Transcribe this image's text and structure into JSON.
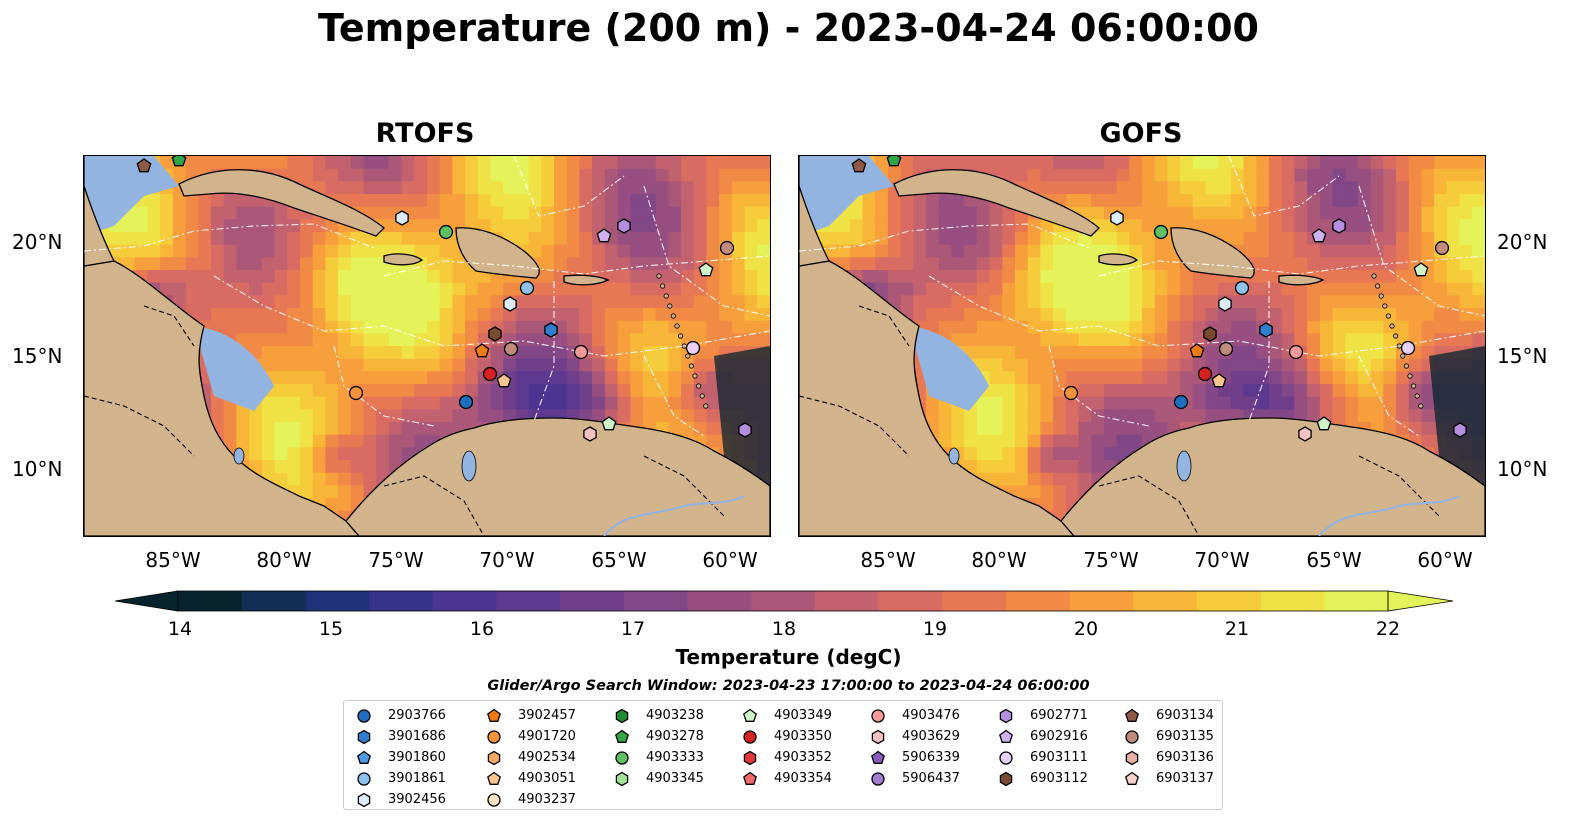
{
  "title": "Temperature (200 m) - 2023-04-24 06:00:00",
  "panels": [
    {
      "title": "RTOFS"
    },
    {
      "title": "GOFS"
    }
  ],
  "axes": {
    "lat_ticks": [
      "20°N",
      "15°N",
      "10°N"
    ],
    "lon_ticks": [
      "85°W",
      "80°W",
      "75°W",
      "70°W",
      "65°W",
      "60°W"
    ]
  },
  "colorbar": {
    "label": "Temperature (degC)",
    "ticks": [
      "14",
      "15",
      "16",
      "17",
      "18",
      "19",
      "20",
      "21",
      "22"
    ],
    "range": [
      14,
      22
    ],
    "colors": [
      "#06232e",
      "#132d55",
      "#1f3178",
      "#35338a",
      "#4a3590",
      "#5d3a90",
      "#6f3f8c",
      "#824786",
      "#964f80",
      "#ab5878",
      "#c2626f",
      "#d86c62",
      "#e87853",
      "#f18a45",
      "#f69f3c",
      "#f8b638",
      "#f5cc3b",
      "#eee247",
      "#e5f35a"
    ]
  },
  "search_window": "Glider/Argo Search Window: 2023-04-23 17:00:00 to 2023-04-24 06:00:00",
  "legend": {
    "columns": [
      [
        {
          "id": "2903766",
          "marker": "circle",
          "color": "#1f6fc0"
        },
        {
          "id": "3901686",
          "marker": "hexagon",
          "color": "#2f7fce"
        },
        {
          "id": "3901860",
          "marker": "pentagon",
          "color": "#4f9ae0"
        },
        {
          "id": "3901861",
          "marker": "circle",
          "color": "#8ec1ee"
        },
        {
          "id": "3902456",
          "marker": "hexagon",
          "color": "#dcecfb"
        }
      ],
      [
        {
          "id": "3902457",
          "marker": "pentagon",
          "color": "#f07a12"
        },
        {
          "id": "4901720",
          "marker": "circle",
          "color": "#f7923a"
        },
        {
          "id": "4902534",
          "marker": "hexagon",
          "color": "#f8a862"
        },
        {
          "id": "4903051",
          "marker": "pentagon",
          "color": "#fbc48e"
        },
        {
          "id": "4903237",
          "marker": "circle",
          "color": "#fde2c3"
        }
      ],
      [
        {
          "id": "4903238",
          "marker": "hexagon",
          "color": "#1e8c32"
        },
        {
          "id": "4903278",
          "marker": "pentagon",
          "color": "#31a444"
        },
        {
          "id": "4903333",
          "marker": "circle",
          "color": "#5cc160"
        },
        {
          "id": "4903345",
          "marker": "hexagon",
          "color": "#9fe395"
        }
      ],
      [
        {
          "id": "4903349",
          "marker": "pentagon",
          "color": "#cdf5c5"
        },
        {
          "id": "4903350",
          "marker": "circle",
          "color": "#d62222"
        },
        {
          "id": "4903352",
          "marker": "hexagon",
          "color": "#e03838"
        },
        {
          "id": "4903354",
          "marker": "pentagon",
          "color": "#ef6b6b"
        }
      ],
      [
        {
          "id": "4903476",
          "marker": "circle",
          "color": "#f49a9a"
        },
        {
          "id": "4903629",
          "marker": "hexagon",
          "color": "#f8c2c2"
        },
        {
          "id": "5906339",
          "marker": "pentagon",
          "color": "#8a5cc0"
        },
        {
          "id": "5906437",
          "marker": "circle",
          "color": "#a37bd0"
        }
      ],
      [
        {
          "id": "6902771",
          "marker": "hexagon",
          "color": "#b58ee0"
        },
        {
          "id": "6902916",
          "marker": "pentagon",
          "color": "#cfb0f0"
        },
        {
          "id": "6903111",
          "marker": "circle",
          "color": "#e8d2fa"
        },
        {
          "id": "6903112",
          "marker": "hexagon",
          "color": "#7a4a32"
        }
      ],
      [
        {
          "id": "6903134",
          "marker": "pentagon",
          "color": "#91594a"
        },
        {
          "id": "6903135",
          "marker": "circle",
          "color": "#c08a7c"
        },
        {
          "id": "6903136",
          "marker": "hexagon",
          "color": "#e6b0a4"
        },
        {
          "id": "6903137",
          "marker": "pentagon",
          "color": "#f7d3cc"
        }
      ]
    ]
  },
  "map_colors": {
    "land": "#d2b48c",
    "ocean_shallow": "#93b4e0",
    "ocean_deep": "#06232e",
    "eez_line": "#ffffff",
    "border_line": "#000000"
  }
}
